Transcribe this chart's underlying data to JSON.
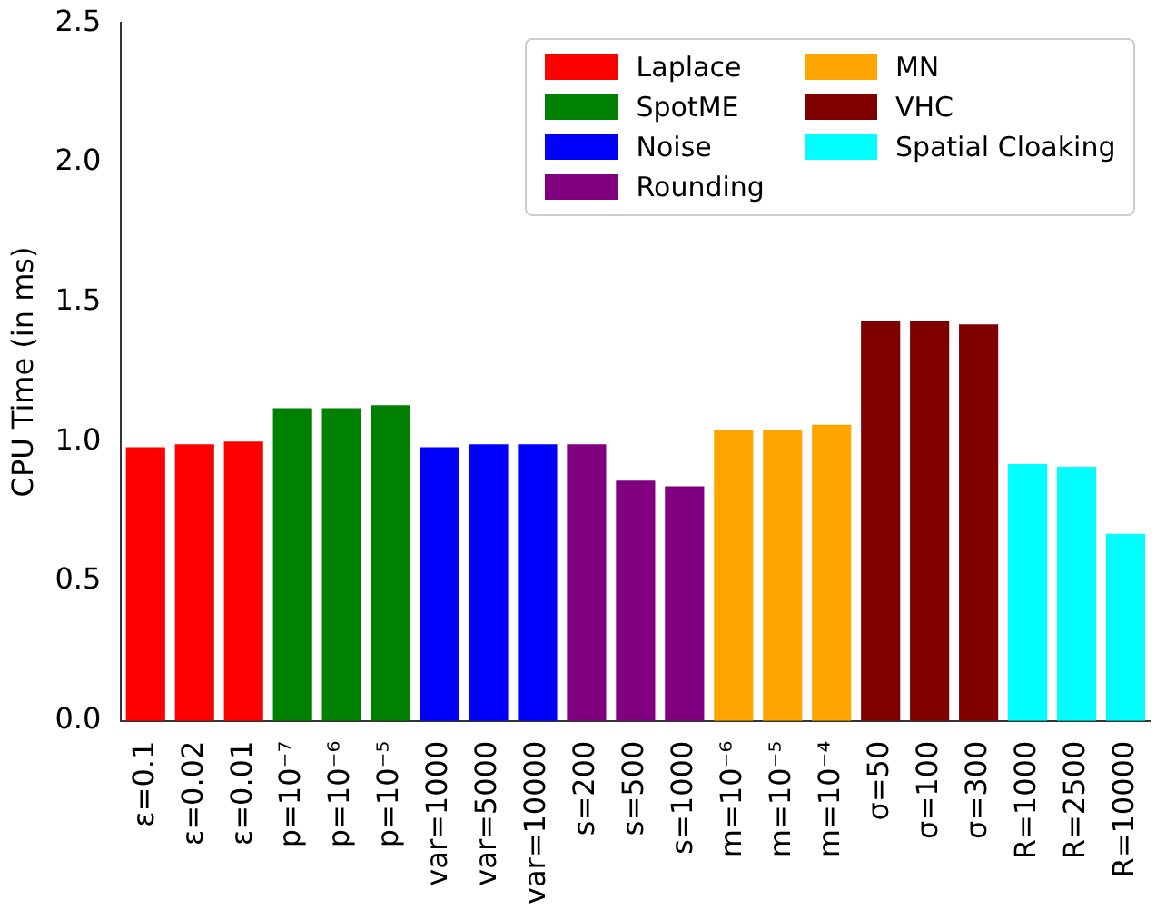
{
  "chart_data": {
    "type": "bar",
    "ylabel": "CPU Time (in ms)",
    "categories": [
      "ε=0.1",
      "ε=0.02",
      "ε=0.01",
      "p=10⁻⁷",
      "p=10⁻⁶",
      "p=10⁻⁵",
      "var=1000",
      "var=5000",
      "var=10000",
      "s=200",
      "s=500",
      "s=1000",
      "m=10⁻⁶",
      "m=10⁻⁵",
      "m=10⁻⁴",
      "σ=50",
      "σ=100",
      "σ=300",
      "R=1000",
      "R=2500",
      "R=10000"
    ],
    "series": [
      {
        "name": "Laplace",
        "color": "#ff0000",
        "values": [
          0.98,
          0.99,
          1.0,
          null,
          null,
          null,
          null,
          null,
          null,
          null,
          null,
          null,
          null,
          null,
          null,
          null,
          null,
          null,
          null,
          null,
          null
        ]
      },
      {
        "name": "SpotME",
        "color": "#008000",
        "values": [
          null,
          null,
          null,
          1.12,
          1.12,
          1.13,
          null,
          null,
          null,
          null,
          null,
          null,
          null,
          null,
          null,
          null,
          null,
          null,
          null,
          null,
          null
        ]
      },
      {
        "name": "Noise",
        "color": "#0000ff",
        "values": [
          null,
          null,
          null,
          null,
          null,
          null,
          0.98,
          0.99,
          0.99,
          null,
          null,
          null,
          null,
          null,
          null,
          null,
          null,
          null,
          null,
          null,
          null
        ]
      },
      {
        "name": "Rounding",
        "color": "#800080",
        "values": [
          null,
          null,
          null,
          null,
          null,
          null,
          null,
          null,
          null,
          0.99,
          0.86,
          0.84,
          null,
          null,
          null,
          null,
          null,
          null,
          null,
          null,
          null
        ]
      },
      {
        "name": "MN",
        "color": "#ffa500",
        "values": [
          null,
          null,
          null,
          null,
          null,
          null,
          null,
          null,
          null,
          null,
          null,
          null,
          1.04,
          1.04,
          1.06,
          null,
          null,
          null,
          null,
          null,
          null
        ]
      },
      {
        "name": "VHC",
        "color": "#800000",
        "values": [
          null,
          null,
          null,
          null,
          null,
          null,
          null,
          null,
          null,
          null,
          null,
          null,
          null,
          null,
          null,
          1.43,
          1.43,
          1.42,
          null,
          null,
          null
        ]
      },
      {
        "name": "Spatial Cloaking",
        "color": "#00ffff",
        "values": [
          null,
          null,
          null,
          null,
          null,
          null,
          null,
          null,
          null,
          null,
          null,
          null,
          null,
          null,
          null,
          null,
          null,
          null,
          0.92,
          0.91,
          0.67
        ]
      }
    ],
    "ylim": [
      0,
      2.5
    ],
    "yticks": [
      {
        "value": 0,
        "label": "0.0"
      },
      0.5,
      {
        "value": 1,
        "label": "1.0"
      },
      1.5,
      {
        "value": 2,
        "label": "2.0"
      },
      2.5
    ],
    "legend": "top right"
  }
}
